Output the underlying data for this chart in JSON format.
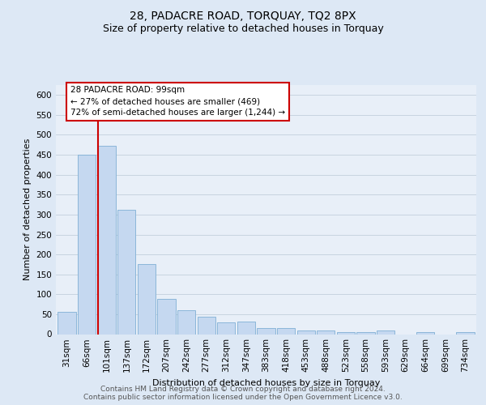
{
  "title": "28, PADACRE ROAD, TORQUAY, TQ2 8PX",
  "subtitle": "Size of property relative to detached houses in Torquay",
  "xlabel": "Distribution of detached houses by size in Torquay",
  "ylabel": "Number of detached properties",
  "categories": [
    "31sqm",
    "66sqm",
    "101sqm",
    "137sqm",
    "172sqm",
    "207sqm",
    "242sqm",
    "277sqm",
    "312sqm",
    "347sqm",
    "383sqm",
    "418sqm",
    "453sqm",
    "488sqm",
    "523sqm",
    "558sqm",
    "593sqm",
    "629sqm",
    "664sqm",
    "699sqm",
    "734sqm"
  ],
  "values": [
    55,
    450,
    472,
    311,
    176,
    88,
    59,
    43,
    30,
    32,
    15,
    15,
    10,
    10,
    6,
    6,
    10,
    0,
    5,
    0,
    5
  ],
  "bar_color": "#c5d8f0",
  "bar_edge_color": "#7fafd4",
  "vline_color": "#cc0000",
  "annotation_line1": "28 PADACRE ROAD: 99sqm",
  "annotation_line2": "← 27% of detached houses are smaller (469)",
  "annotation_line3": "72% of semi-detached houses are larger (1,244) →",
  "annotation_box_facecolor": "#ffffff",
  "annotation_box_edgecolor": "#cc0000",
  "footer_line1": "Contains HM Land Registry data © Crown copyright and database right 2024.",
  "footer_line2": "Contains public sector information licensed under the Open Government Licence v3.0.",
  "ylim": [
    0,
    625
  ],
  "yticks": [
    0,
    50,
    100,
    150,
    200,
    250,
    300,
    350,
    400,
    450,
    500,
    550,
    600
  ],
  "bg_color": "#dde8f5",
  "plot_bg_color": "#e8eff8",
  "grid_color": "#c8d4e0",
  "title_fontsize": 10,
  "subtitle_fontsize": 9,
  "axis_label_fontsize": 8,
  "tick_fontsize": 7.5,
  "annot_fontsize": 7.5,
  "footer_fontsize": 6.5
}
